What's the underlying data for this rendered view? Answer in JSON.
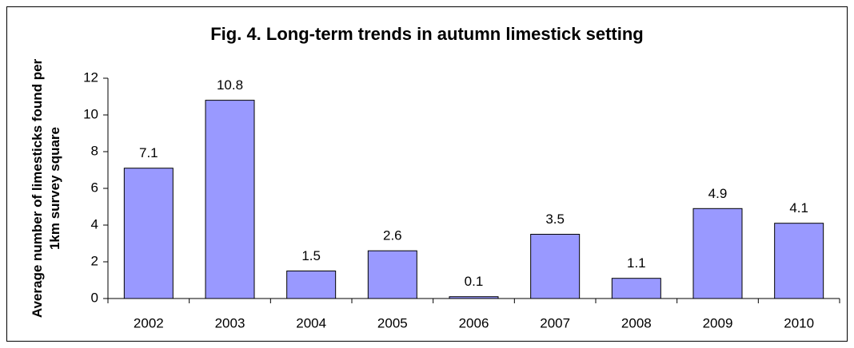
{
  "chart_data": {
    "type": "bar",
    "title": "Fig. 4. Long-term trends in autumn limestick setting",
    "y_label": "Average number of limesticks found per 1km survey square",
    "categories": [
      "2002",
      "2003",
      "2004",
      "2005",
      "2006",
      "2007",
      "2008",
      "2009",
      "2010"
    ],
    "values": [
      7.1,
      10.8,
      1.5,
      2.6,
      0.1,
      3.5,
      1.1,
      4.9,
      4.1
    ],
    "color": "#9999ff",
    "ylim": [
      0,
      12
    ],
    "yticks": [
      0,
      2,
      4,
      6,
      8,
      10,
      12
    ],
    "grid": false
  }
}
